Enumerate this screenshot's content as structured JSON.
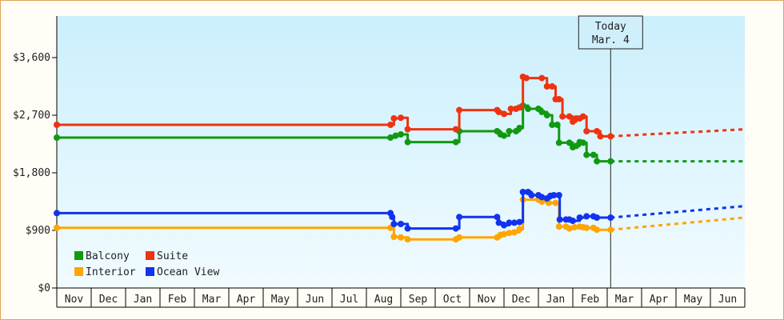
{
  "chart_data": {
    "type": "line",
    "title": "",
    "xlabel": "",
    "ylabel": "",
    "ylim": [
      0,
      4250
    ],
    "yticks": [
      0,
      900,
      1800,
      2700,
      3600
    ],
    "ytick_labels": [
      "$0",
      "$900",
      "$1,800",
      "$2,700",
      "$3,600"
    ],
    "x_months": [
      "Nov",
      "Dec",
      "Jan",
      "Feb",
      "Mar",
      "Apr",
      "May",
      "Jun",
      "Jul",
      "Aug",
      "Sep",
      "Oct",
      "Nov",
      "Dec",
      "Jan",
      "Feb",
      "Mar",
      "Apr",
      "May",
      "Jun"
    ],
    "x_range": [
      0,
      20
    ],
    "grid": false,
    "legend_position": "bottom-left",
    "today": {
      "line1": "Today",
      "line2": "Mar. 4",
      "x": 16.1
    },
    "series": [
      {
        "name": "Balcony",
        "color": "#119911",
        "points": [
          [
            0,
            2350
          ],
          [
            9.7,
            2350
          ],
          [
            9.85,
            2380
          ],
          [
            10.0,
            2400
          ],
          [
            10.2,
            2280
          ],
          [
            11.6,
            2280
          ],
          [
            11.7,
            2450
          ],
          [
            12.8,
            2450
          ],
          [
            12.9,
            2400
          ],
          [
            13.0,
            2380
          ],
          [
            13.15,
            2450
          ],
          [
            13.35,
            2450
          ],
          [
            13.45,
            2500
          ],
          [
            13.55,
            2850
          ],
          [
            13.7,
            2800
          ],
          [
            14.0,
            2800
          ],
          [
            14.1,
            2750
          ],
          [
            14.25,
            2700
          ],
          [
            14.4,
            2550
          ],
          [
            14.55,
            2550
          ],
          [
            14.6,
            2270
          ],
          [
            14.9,
            2270
          ],
          [
            15.0,
            2200
          ],
          [
            15.1,
            2220
          ],
          [
            15.2,
            2280
          ],
          [
            15.3,
            2270
          ],
          [
            15.4,
            2080
          ],
          [
            15.6,
            2080
          ],
          [
            15.7,
            1980
          ],
          [
            16.1,
            1980
          ]
        ],
        "forecast": [
          [
            16.1,
            1980
          ],
          [
            20.0,
            1980
          ]
        ]
      },
      {
        "name": "Suite",
        "color": "#ee3311",
        "points": [
          [
            0,
            2550
          ],
          [
            9.7,
            2550
          ],
          [
            9.8,
            2650
          ],
          [
            10.0,
            2660
          ],
          [
            10.2,
            2480
          ],
          [
            11.6,
            2480
          ],
          [
            11.7,
            2780
          ],
          [
            12.8,
            2780
          ],
          [
            12.85,
            2750
          ],
          [
            13.0,
            2720
          ],
          [
            13.2,
            2800
          ],
          [
            13.35,
            2800
          ],
          [
            13.45,
            2820
          ],
          [
            13.55,
            3300
          ],
          [
            13.65,
            3280
          ],
          [
            14.1,
            3280
          ],
          [
            14.25,
            3150
          ],
          [
            14.4,
            3150
          ],
          [
            14.5,
            2950
          ],
          [
            14.6,
            2950
          ],
          [
            14.7,
            2680
          ],
          [
            14.9,
            2680
          ],
          [
            15.0,
            2600
          ],
          [
            15.1,
            2650
          ],
          [
            15.2,
            2650
          ],
          [
            15.3,
            2680
          ],
          [
            15.4,
            2450
          ],
          [
            15.7,
            2450
          ],
          [
            15.8,
            2370
          ],
          [
            16.1,
            2370
          ]
        ],
        "forecast": [
          [
            16.1,
            2370
          ],
          [
            20.0,
            2480
          ]
        ]
      },
      {
        "name": "Interior",
        "color": "#ffa500",
        "points": [
          [
            0,
            940
          ],
          [
            9.7,
            940
          ],
          [
            9.8,
            800
          ],
          [
            10.0,
            790
          ],
          [
            10.2,
            760
          ],
          [
            11.6,
            760
          ],
          [
            11.7,
            790
          ],
          [
            12.8,
            790
          ],
          [
            12.9,
            830
          ],
          [
            13.0,
            840
          ],
          [
            13.15,
            860
          ],
          [
            13.3,
            870
          ],
          [
            13.45,
            920
          ],
          [
            13.55,
            1380
          ],
          [
            14.0,
            1380
          ],
          [
            14.1,
            1350
          ],
          [
            14.3,
            1330
          ],
          [
            14.5,
            1330
          ],
          [
            14.6,
            960
          ],
          [
            14.8,
            960
          ],
          [
            14.9,
            930
          ],
          [
            15.05,
            950
          ],
          [
            15.2,
            960
          ],
          [
            15.3,
            950
          ],
          [
            15.4,
            940
          ],
          [
            15.6,
            940
          ],
          [
            15.7,
            910
          ],
          [
            16.1,
            910
          ]
        ],
        "forecast": [
          [
            16.1,
            910
          ],
          [
            20.0,
            1100
          ]
        ]
      },
      {
        "name": "Ocean View",
        "color": "#1133ee",
        "points": [
          [
            0,
            1170
          ],
          [
            9.7,
            1170
          ],
          [
            9.75,
            1110
          ],
          [
            9.8,
            1000
          ],
          [
            10.0,
            1000
          ],
          [
            10.2,
            930
          ],
          [
            11.6,
            930
          ],
          [
            11.7,
            1110
          ],
          [
            12.8,
            1110
          ],
          [
            12.85,
            1020
          ],
          [
            13.0,
            980
          ],
          [
            13.15,
            1020
          ],
          [
            13.3,
            1020
          ],
          [
            13.45,
            1030
          ],
          [
            13.55,
            1500
          ],
          [
            13.7,
            1500
          ],
          [
            13.8,
            1450
          ],
          [
            14.0,
            1450
          ],
          [
            14.1,
            1420
          ],
          [
            14.25,
            1400
          ],
          [
            14.35,
            1440
          ],
          [
            14.45,
            1450
          ],
          [
            14.6,
            1450
          ],
          [
            14.62,
            1070
          ],
          [
            14.8,
            1070
          ],
          [
            14.9,
            1070
          ],
          [
            15.0,
            1050
          ],
          [
            15.2,
            1100
          ],
          [
            15.4,
            1120
          ],
          [
            15.6,
            1120
          ],
          [
            15.7,
            1100
          ],
          [
            16.1,
            1100
          ]
        ],
        "forecast": [
          [
            16.1,
            1100
          ],
          [
            20.0,
            1280
          ]
        ]
      }
    ]
  }
}
